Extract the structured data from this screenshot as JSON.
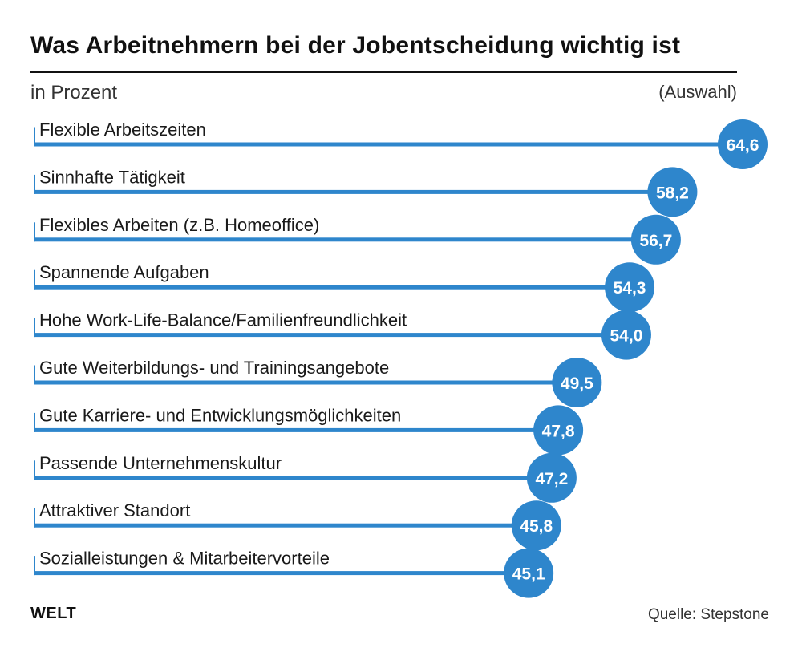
{
  "header": {
    "title": "Was Arbeitnehmern bei der Jobentscheidung wichtig ist",
    "subtitle": "in Prozent",
    "note": "(Auswahl)"
  },
  "footer": {
    "brand": "WELT",
    "source": "Quelle: Stepstone"
  },
  "colors": {
    "bar": "#2e86cc",
    "bubble": "#2e86cc",
    "value_text": "#ffffff"
  },
  "chart_data": {
    "type": "bar",
    "orientation": "horizontal",
    "title": "Was Arbeitnehmern bei der Jobentscheidung wichtig ist",
    "subtitle": "in Prozent",
    "categories": [
      "Flexible Arbeitszeiten",
      "Sinnhafte Tätigkeit",
      "Flexibles Arbeiten (z.B. Homeoffice)",
      "Spannende Aufgaben",
      "Hohe Work-Life-Balance/Familienfreundlichkeit",
      "Gute Weiterbildungs- und Trainingsangebote",
      "Gute Karriere- und Entwicklungsmöglichkeiten",
      "Passende Unternehmenskultur",
      "Attraktiver Standort",
      "Sozialleistungen & Mitarbeitervorteile"
    ],
    "values": [
      64.6,
      58.2,
      56.7,
      54.3,
      54.0,
      49.5,
      47.8,
      47.2,
      45.8,
      45.1
    ],
    "value_labels": [
      "64,6",
      "58,2",
      "56,7",
      "54,3",
      "54,0",
      "49,5",
      "47,8",
      "47,2",
      "45,8",
      "45,1"
    ],
    "legend": "none",
    "grid": false
  }
}
